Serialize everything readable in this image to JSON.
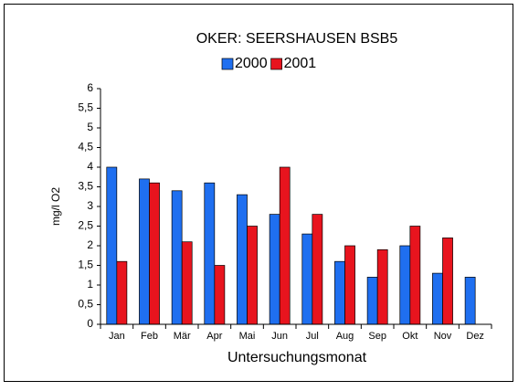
{
  "chart_data": {
    "type": "bar",
    "title": "OKER: SEERSHAUSEN BSB5",
    "x_label": "Untersuchungsmonat",
    "y_label": "mg/l O2",
    "categories": [
      "Jan",
      "Feb",
      "Mär",
      "Apr",
      "Mai",
      "Jun",
      "Jul",
      "Aug",
      "Sep",
      "Okt",
      "Nov",
      "Dez"
    ],
    "series": [
      {
        "name": "2000",
        "color": "#1f6ff0",
        "values": [
          4,
          3.7,
          3.4,
          3.6,
          3.3,
          2.8,
          2.3,
          1.6,
          1.2,
          2,
          1.3,
          1.2
        ]
      },
      {
        "name": "2001",
        "color": "#e8141e",
        "values": [
          1.6,
          3.6,
          2.1,
          1.5,
          2.5,
          4,
          2.8,
          2,
          1.9,
          2.5,
          2.2,
          null
        ]
      }
    ],
    "ylim": [
      0,
      6
    ],
    "yticks": [
      0,
      {
        "value": 0.5,
        "label": "0,5"
      },
      1,
      {
        "value": 1.5,
        "label": "1,5"
      },
      2,
      {
        "value": 2.5,
        "label": "2,5"
      },
      3,
      {
        "value": 3.5,
        "label": "3,5"
      },
      4,
      {
        "value": 4.5,
        "label": "4,5"
      },
      5,
      {
        "value": 5.5,
        "label": "5,5"
      },
      6
    ],
    "grid": false,
    "legend": "top"
  }
}
